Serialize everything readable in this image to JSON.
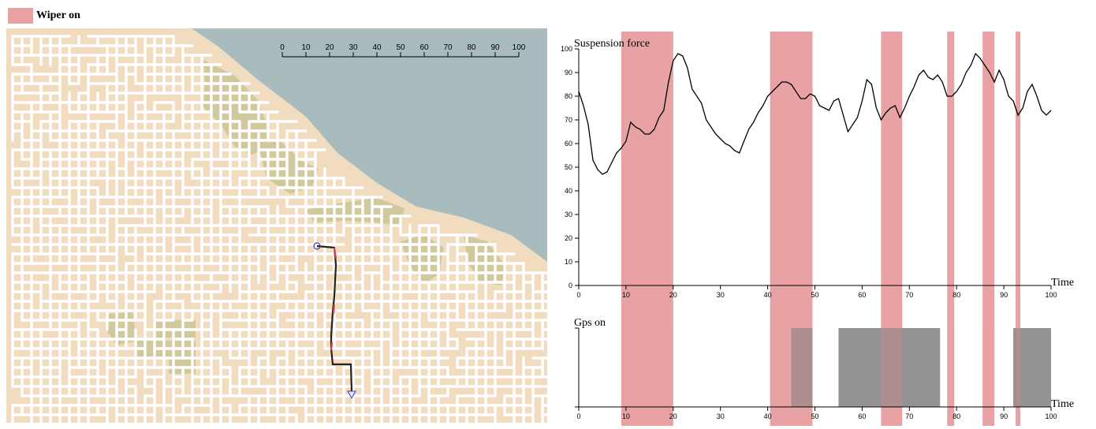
{
  "legend": {
    "label": "Wiper on",
    "color": "#e8a2a4"
  },
  "colors": {
    "land": "#f2dcc0",
    "water": "#a8bbbd",
    "park": "#cfc99d",
    "road": "#ffffff",
    "gps_bar": "#808080",
    "route": "#222222",
    "route_accent": "#d9434a",
    "marker": "#3b3bcc"
  },
  "map": {
    "scale_bar": {
      "ticks": [
        "0",
        "10",
        "20",
        "30",
        "40",
        "50",
        "60",
        "70",
        "80",
        "90",
        "100"
      ]
    }
  },
  "chart_data": [
    {
      "type": "line",
      "title": "Suspension force",
      "xlabel": "Time",
      "ylabel": "",
      "xlim": [
        0,
        100
      ],
      "ylim": [
        0,
        100
      ],
      "xticks": [
        0,
        10,
        20,
        30,
        40,
        50,
        60,
        70,
        80,
        90,
        100
      ],
      "yticks": [
        0,
        10,
        20,
        30,
        40,
        50,
        60,
        70,
        80,
        90,
        100
      ],
      "x": [
        0,
        1,
        2,
        3,
        4,
        5,
        6,
        7,
        8,
        9,
        10,
        11,
        12,
        13,
        14,
        15,
        16,
        17,
        18,
        19,
        20,
        21,
        22,
        23,
        24,
        25,
        26,
        27,
        28,
        29,
        30,
        31,
        32,
        33,
        34,
        35,
        36,
        37,
        38,
        39,
        40,
        41,
        42,
        43,
        44,
        45,
        46,
        47,
        48,
        49,
        50,
        51,
        52,
        53,
        54,
        55,
        56,
        57,
        58,
        59,
        60,
        61,
        62,
        63,
        64,
        65,
        66,
        67,
        68,
        69,
        70,
        71,
        72,
        73,
        74,
        75,
        76,
        77,
        78,
        79,
        80,
        81,
        82,
        83,
        84,
        85,
        86,
        87,
        88,
        89,
        90,
        91,
        92,
        93,
        94,
        95,
        96,
        97,
        98,
        99,
        100
      ],
      "series": [
        {
          "values": [
            82,
            76,
            68,
            53,
            49,
            47,
            48,
            52,
            56,
            58,
            61,
            69,
            67,
            66,
            64,
            64,
            66,
            71,
            74,
            86,
            95,
            98,
            97,
            92,
            83,
            80,
            77,
            70,
            67,
            64,
            62,
            60,
            59,
            57,
            56,
            61,
            66,
            69,
            73,
            76,
            80,
            82,
            84,
            86,
            86,
            85,
            82,
            79,
            79,
            81,
            80,
            76,
            75,
            74,
            78,
            79,
            72,
            65,
            68,
            71,
            78,
            87,
            85,
            75,
            70,
            73,
            75,
            76,
            71,
            75,
            80,
            84,
            89,
            91,
            88,
            87,
            89,
            86,
            80,
            80,
            82,
            85,
            90,
            93,
            98,
            96,
            93,
            90,
            86,
            91,
            87,
            80,
            78,
            72,
            75,
            82,
            85,
            80,
            74,
            72,
            74
          ]
        }
      ],
      "shaded_regions": {
        "label": "Wiper on",
        "ranges": [
          [
            9,
            20
          ],
          [
            40.5,
            49.5
          ],
          [
            64,
            68.5
          ],
          [
            78,
            79.5
          ],
          [
            85.5,
            88
          ],
          [
            92.5,
            93.5
          ]
        ]
      }
    },
    {
      "type": "bar",
      "title": "Gps on",
      "xlabel": "Time",
      "xlim": [
        0,
        100
      ],
      "xticks": [
        0,
        10,
        20,
        30,
        40,
        50,
        60,
        70,
        80,
        90,
        100
      ],
      "intervals": [
        [
          45,
          49.5
        ],
        [
          55,
          76.5
        ],
        [
          92,
          100
        ]
      ],
      "shaded_regions": {
        "label": "Wiper on",
        "ranges": [
          [
            9,
            20
          ],
          [
            40.5,
            49.5
          ],
          [
            64,
            68.5
          ],
          [
            78,
            79.5
          ],
          [
            85.5,
            88
          ],
          [
            92.5,
            93.5
          ]
        ]
      }
    }
  ]
}
